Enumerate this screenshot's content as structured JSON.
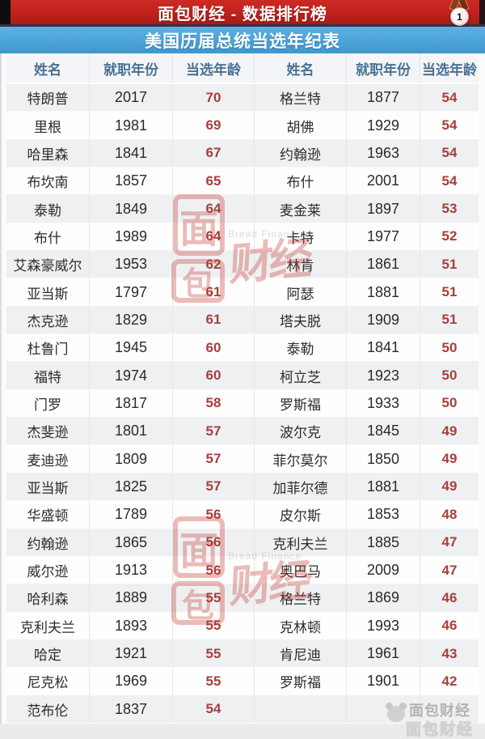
{
  "header": {
    "title": "面包财经 - 数据排行榜",
    "medal_text": "1"
  },
  "subtitle": "美国历届总统当选年纪表",
  "chart_data": {
    "type": "table",
    "title": "美国历届总统当选年纪表",
    "banner": "面包财经 - 数据排行榜",
    "columns": [
      "姓名",
      "就职年份",
      "当选年龄",
      "姓名",
      "就职年份",
      "当选年龄"
    ],
    "rows": [
      [
        "特朗普",
        "2017",
        "70",
        "格兰特",
        "1877",
        "54"
      ],
      [
        "里根",
        "1981",
        "69",
        "胡佛",
        "1929",
        "54"
      ],
      [
        "哈里森",
        "1841",
        "67",
        "约翰逊",
        "1963",
        "54"
      ],
      [
        "布坎南",
        "1857",
        "65",
        "布什",
        "2001",
        "54"
      ],
      [
        "泰勒",
        "1849",
        "64",
        "麦金莱",
        "1897",
        "53"
      ],
      [
        "布什",
        "1989",
        "64",
        "卡特",
        "1977",
        "52"
      ],
      [
        "艾森豪威尔",
        "1953",
        "62",
        "林肯",
        "1861",
        "51"
      ],
      [
        "亚当斯",
        "1797",
        "61",
        "阿瑟",
        "1881",
        "51"
      ],
      [
        "杰克逊",
        "1829",
        "61",
        "塔夫脱",
        "1909",
        "51"
      ],
      [
        "杜鲁门",
        "1945",
        "60",
        "泰勒",
        "1841",
        "50"
      ],
      [
        "福特",
        "1974",
        "60",
        "柯立芝",
        "1923",
        "50"
      ],
      [
        "门罗",
        "1817",
        "58",
        "罗斯福",
        "1933",
        "50"
      ],
      [
        "杰斐逊",
        "1801",
        "57",
        "波尔克",
        "1845",
        "49"
      ],
      [
        "麦迪逊",
        "1809",
        "57",
        "菲尔莫尔",
        "1850",
        "49"
      ],
      [
        "亚当斯",
        "1825",
        "57",
        "加菲尔德",
        "1881",
        "49"
      ],
      [
        "华盛顿",
        "1789",
        "56",
        "皮尔斯",
        "1853",
        "48"
      ],
      [
        "约翰逊",
        "1865",
        "56",
        "克利夫兰",
        "1885",
        "47"
      ],
      [
        "威尔逊",
        "1913",
        "56",
        "奥巴马",
        "2009",
        "47"
      ],
      [
        "哈利森",
        "1889",
        "55",
        "格兰特",
        "1869",
        "46"
      ],
      [
        "克利夫兰",
        "1893",
        "55",
        "克林顿",
        "1993",
        "46"
      ],
      [
        "哈定",
        "1921",
        "55",
        "肯尼迪",
        "1961",
        "43"
      ],
      [
        "尼克松",
        "1969",
        "55",
        "罗斯福",
        "1901",
        "42"
      ],
      [
        "范布伦",
        "1837",
        "54",
        "",
        "",
        ""
      ]
    ]
  },
  "watermark": {
    "seal_top": "面",
    "seal_bottom": "包",
    "script": "财经",
    "brand_en": "Bread Finance",
    "footer_brand": "面包财经"
  },
  "colors": {
    "banner_red": "#c0211c",
    "banner_blue": "#4aa3d6",
    "header_text": "#4a7191",
    "age_red": "#a5403e",
    "alt_row": "#eff0f2",
    "watermark_red": "#c43c35"
  }
}
